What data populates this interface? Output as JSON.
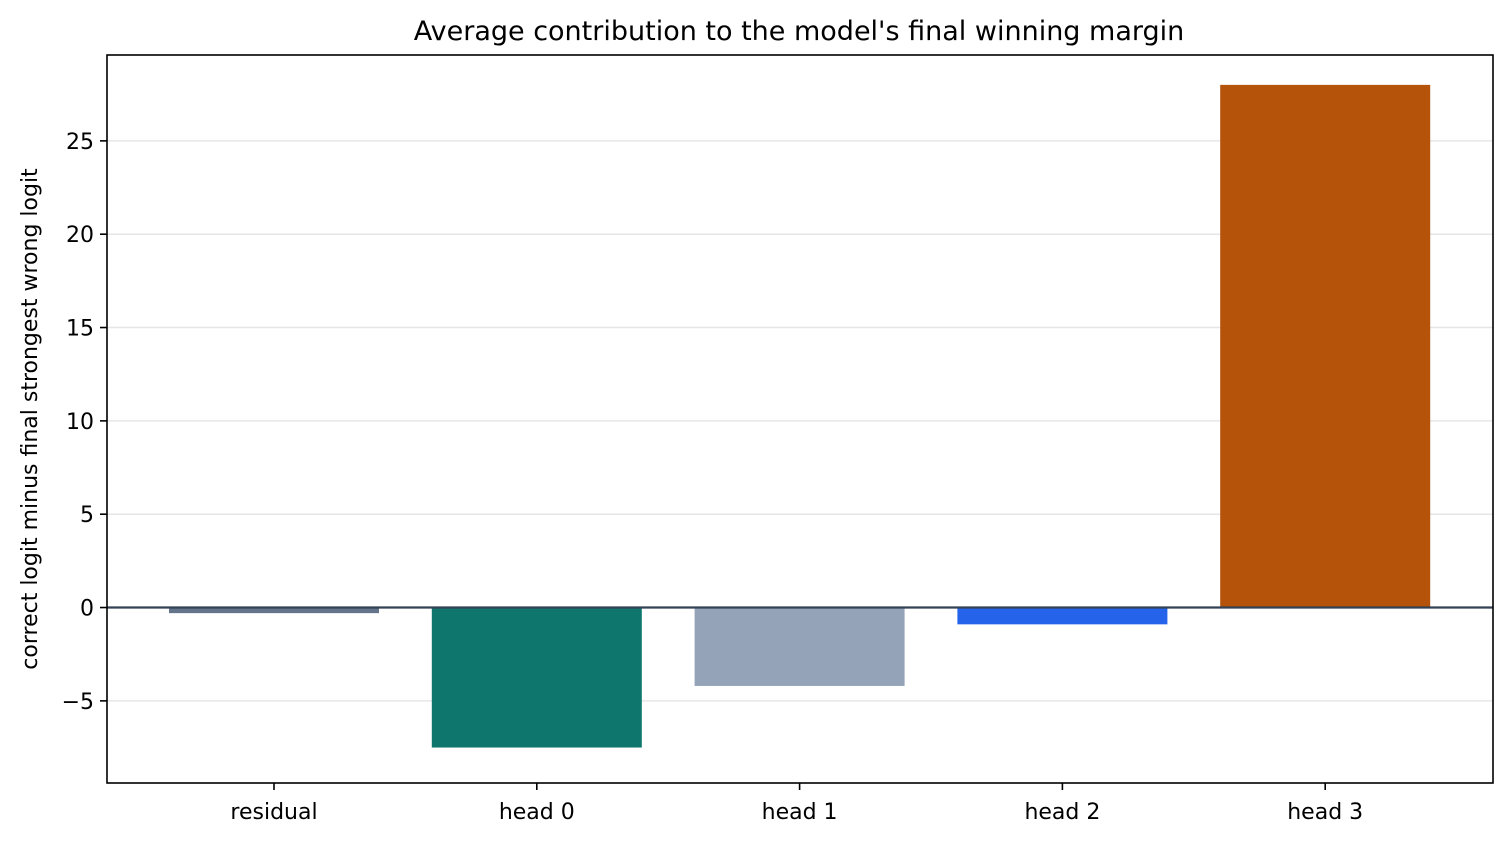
{
  "chart_data": {
    "type": "bar",
    "title": "Average contribution to the model's final winning margin",
    "xlabel": "",
    "ylabel": "correct logit minus final strongest wrong logit",
    "categories": [
      "residual",
      "head 0",
      "head 1",
      "head 2",
      "head 3"
    ],
    "values": [
      -0.3,
      -7.5,
      -4.2,
      -0.9,
      28.0
    ],
    "colors": [
      "#64748b",
      "#0f766e",
      "#94a3b8",
      "#2563eb",
      "#b45309"
    ],
    "ylim": [
      -9.4,
      29.6
    ],
    "yticks": [
      -5,
      0,
      5,
      10,
      15,
      20,
      25
    ],
    "ytick_labels": [
      "−5",
      "0",
      "5",
      "10",
      "15",
      "20",
      "25"
    ],
    "grid": "horizontal",
    "zero_line": true,
    "legend": "none"
  }
}
